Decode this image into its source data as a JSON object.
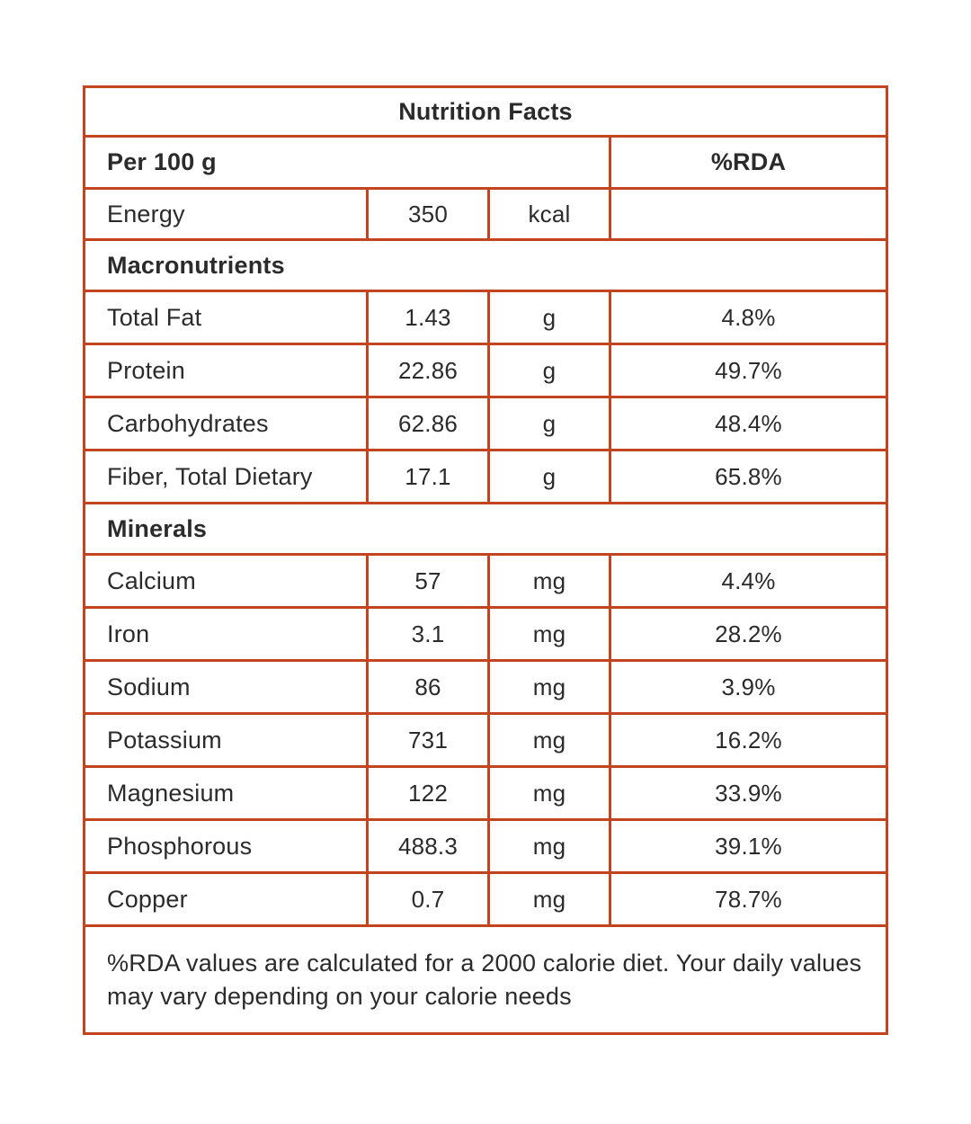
{
  "table": {
    "title": "Nutrition Facts",
    "serving_header": "Per 100 g",
    "rda_header": "%RDA",
    "energy": {
      "label": "Energy",
      "value": "350",
      "unit": "kcal",
      "rda": ""
    },
    "sections": [
      {
        "name": "Macronutrients",
        "rows": [
          {
            "label": "Total Fat",
            "value": "1.43",
            "unit": "g",
            "rda": "4.8%"
          },
          {
            "label": "Protein",
            "value": "22.86",
            "unit": "g",
            "rda": "49.7%"
          },
          {
            "label": "Carbohydrates",
            "value": "62.86",
            "unit": "g",
            "rda": "48.4%"
          },
          {
            "label": "Fiber, Total Dietary",
            "value": "17.1",
            "unit": "g",
            "rda": "65.8%"
          }
        ]
      },
      {
        "name": "Minerals",
        "rows": [
          {
            "label": "Calcium",
            "value": "57",
            "unit": "mg",
            "rda": "4.4%"
          },
          {
            "label": "Iron",
            "value": "3.1",
            "unit": "mg",
            "rda": "28.2%"
          },
          {
            "label": "Sodium",
            "value": "86",
            "unit": "mg",
            "rda": "3.9%"
          },
          {
            "label": "Potassium",
            "value": "731",
            "unit": "mg",
            "rda": "16.2%"
          },
          {
            "label": "Magnesium",
            "value": "122",
            "unit": "mg",
            "rda": "33.9%"
          },
          {
            "label": "Phosphorous",
            "value": "488.3",
            "unit": "mg",
            "rda": "39.1%"
          },
          {
            "label": "Copper",
            "value": "0.7",
            "unit": "mg",
            "rda": "78.7%"
          }
        ]
      }
    ],
    "footnote": "%RDA values are calculated for a 2000 calorie diet. Your daily values may vary depending on your calorie needs"
  },
  "colors": {
    "border": "#C2451F",
    "text": "#2B2B2B",
    "background": "#FFFFFF"
  }
}
